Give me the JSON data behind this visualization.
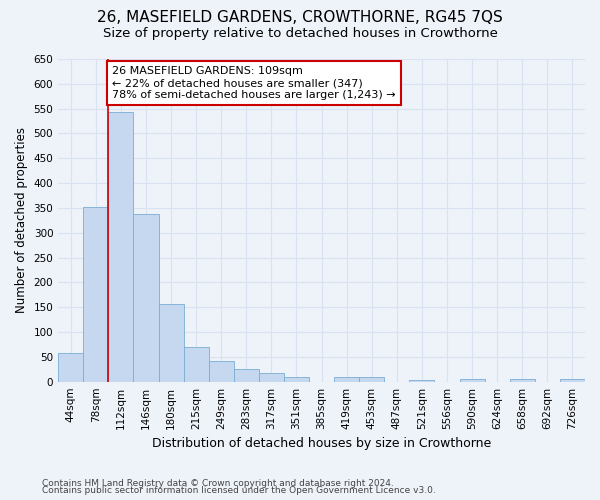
{
  "title": "26, MASEFIELD GARDENS, CROWTHORNE, RG45 7QS",
  "subtitle": "Size of property relative to detached houses in Crowthorne",
  "xlabel": "Distribution of detached houses by size in Crowthorne",
  "ylabel": "Number of detached properties",
  "footer_line1": "Contains HM Land Registry data © Crown copyright and database right 2024.",
  "footer_line2": "Contains public sector information licensed under the Open Government Licence v3.0.",
  "bin_labels": [
    "44sqm",
    "78sqm",
    "112sqm",
    "146sqm",
    "180sqm",
    "215sqm",
    "249sqm",
    "283sqm",
    "317sqm",
    "351sqm",
    "385sqm",
    "419sqm",
    "453sqm",
    "487sqm",
    "521sqm",
    "556sqm",
    "590sqm",
    "624sqm",
    "658sqm",
    "692sqm",
    "726sqm"
  ],
  "bar_values": [
    57,
    352,
    543,
    338,
    157,
    70,
    42,
    25,
    17,
    10,
    0,
    9,
    10,
    0,
    3,
    0,
    5,
    0,
    5,
    0,
    5
  ],
  "bar_color": "#c5d8f0",
  "bar_edge_color": "#7aadd4",
  "ylim": [
    0,
    650
  ],
  "yticks": [
    0,
    50,
    100,
    150,
    200,
    250,
    300,
    350,
    400,
    450,
    500,
    550,
    600,
    650
  ],
  "red_line_index": 2,
  "annotation_text": "26 MASEFIELD GARDENS: 109sqm\n← 22% of detached houses are smaller (347)\n78% of semi-detached houses are larger (1,243) →",
  "background_color": "#eef2f9",
  "grid_color": "#d8e2f0",
  "annotation_box_color": "#ffffff",
  "annotation_box_edge": "#cc0000",
  "red_line_color": "#cc0000",
  "title_fontsize": 11,
  "subtitle_fontsize": 9.5,
  "xlabel_fontsize": 9,
  "ylabel_fontsize": 8.5,
  "tick_fontsize": 7.5,
  "annotation_fontsize": 8,
  "footer_fontsize": 6.5
}
